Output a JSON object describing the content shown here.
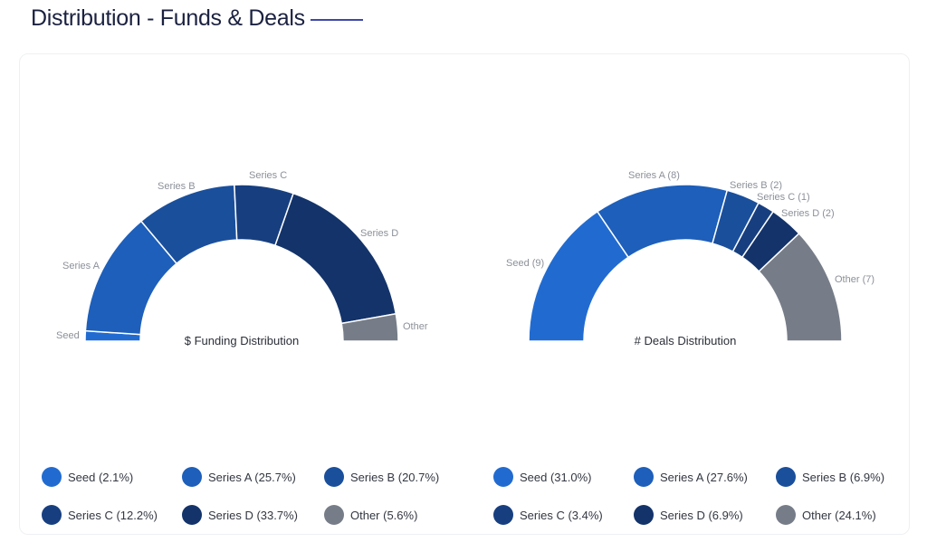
{
  "header": {
    "title": "Distribution - Funds & Deals"
  },
  "colors": {
    "seed": "#216bd0",
    "series_a": "#1d5fba",
    "series_b": "#1a4f9c",
    "series_c": "#173f80",
    "series_d": "#13336a",
    "other": "#767d88"
  },
  "chart_data": [
    {
      "type": "pie",
      "subtype": "half-donut",
      "title": "$ Funding Distribution",
      "categories": [
        "Seed",
        "Series A",
        "Series B",
        "Series C",
        "Series D",
        "Other"
      ],
      "values": [
        2.1,
        25.7,
        20.7,
        12.2,
        33.7,
        5.6
      ],
      "unit": "%",
      "slice_labels": [
        "Seed",
        "Series A",
        "Series B",
        "Series C",
        "Series D",
        "Other"
      ],
      "legend": [
        "Seed (2.1%)",
        "Series A (25.7%)",
        "Series B (20.7%)",
        "Series C (12.2%)",
        "Series D (33.7%)",
        "Other (5.6%)"
      ],
      "legend_position": "bottom"
    },
    {
      "type": "pie",
      "subtype": "half-donut",
      "title": "# Deals Distribution",
      "categories": [
        "Seed",
        "Series A",
        "Series B",
        "Series C",
        "Series D",
        "Other"
      ],
      "values": [
        9,
        8,
        2,
        1,
        2,
        7
      ],
      "percentages": [
        31.0,
        27.6,
        6.9,
        3.4,
        6.9,
        24.1
      ],
      "slice_labels": [
        "Seed (9)",
        "Series A (8)",
        "Series B (2)",
        "Series C (1)",
        "Series D (2)",
        "Other (7)"
      ],
      "legend": [
        "Seed (31.0%)",
        "Series A (27.6%)",
        "Series B (6.9%)",
        "Series C (3.4%)",
        "Series D (6.9%)",
        "Other (24.1%)"
      ],
      "legend_position": "bottom"
    }
  ]
}
